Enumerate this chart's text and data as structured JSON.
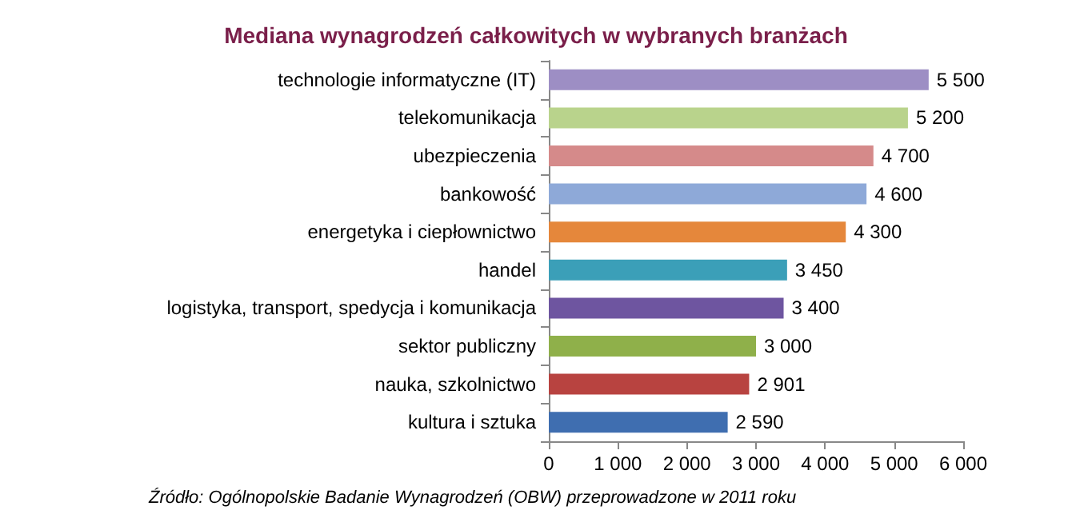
{
  "chart_data": {
    "type": "bar",
    "orientation": "horizontal",
    "title": "Mediana wynagrodzeń całkowitych w wybranych branżach",
    "categories": [
      "technologie informatyczne (IT)",
      "telekomunikacja",
      "ubezpieczenia",
      "bankowość",
      "energetyka i ciepłownictwo",
      "handel",
      "logistyka, transport, spedycja i komunikacja",
      "sektor publiczny",
      "nauka, szkolnictwo",
      "kultura i sztuka"
    ],
    "values": [
      5500,
      5200,
      4700,
      4600,
      4300,
      3450,
      3400,
      3000,
      2901,
      2590
    ],
    "colors": [
      "#9d8ec4",
      "#b9d38c",
      "#d58a8a",
      "#8ea9d8",
      "#e5873b",
      "#3b9fb8",
      "#6e55a0",
      "#8fb04a",
      "#b84340",
      "#3f6eb0"
    ],
    "value_labels": [
      "5 500",
      "5 200",
      "4 700",
      "4 600",
      "4 300",
      "3 450",
      "3 400",
      "3 000",
      "2 901",
      "2 590"
    ],
    "xlim": [
      0,
      6000
    ],
    "xticks": [
      0,
      {
        "value": 1000,
        "label": "1 000"
      },
      {
        "value": 2000,
        "label": "2 000"
      },
      {
        "value": 3000,
        "label": "3 000"
      },
      {
        "value": 4000,
        "label": "4 000"
      },
      {
        "value": 5000,
        "label": "5 000"
      },
      {
        "value": 6000,
        "label": "6 000"
      }
    ],
    "grid": false,
    "annotations": [
      "Źródło: Ogólnopolskie Badanie Wynagrodzeń (OBW) przeprowadzone w 2011 roku"
    ]
  }
}
